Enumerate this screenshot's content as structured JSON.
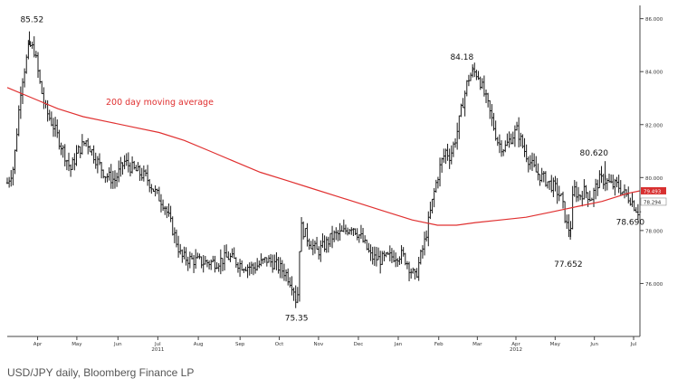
{
  "caption": "USD/JPY daily, Bloomberg Finance LP",
  "chart_data": {
    "type": "line",
    "subtype": "candlestick-daily",
    "y_ticks": [
      {
        "value": 76.0,
        "label": "76.000"
      },
      {
        "value": 78.0,
        "label": "78.000"
      },
      {
        "value": 80.0,
        "label": "80.000"
      },
      {
        "value": 82.0,
        "label": "82.000"
      },
      {
        "value": 84.0,
        "label": "84.000"
      },
      {
        "value": 86.0,
        "label": "86.000"
      }
    ],
    "ylim": [
      74.0,
      86.5
    ],
    "x_ticks": [
      {
        "label": "Apr",
        "year": "",
        "t": 0.048
      },
      {
        "label": "May",
        "year": "",
        "t": 0.11
      },
      {
        "label": "Jun",
        "year": "",
        "t": 0.175
      },
      {
        "label": "Jul",
        "year": "2011",
        "t": 0.238
      },
      {
        "label": "Aug",
        "year": "",
        "t": 0.302
      },
      {
        "label": "Sep",
        "year": "",
        "t": 0.368
      },
      {
        "label": "Oct",
        "year": "",
        "t": 0.43
      },
      {
        "label": "Nov",
        "year": "",
        "t": 0.492
      },
      {
        "label": "Dec",
        "year": "",
        "t": 0.555
      },
      {
        "label": "Jan",
        "year": "",
        "t": 0.618
      },
      {
        "label": "Feb",
        "year": "",
        "t": 0.682
      },
      {
        "label": "Mar",
        "year": "",
        "t": 0.743
      },
      {
        "label": "Apr",
        "year": "2012",
        "t": 0.804
      },
      {
        "label": "May",
        "year": "",
        "t": 0.866
      },
      {
        "label": "Jun",
        "year": "",
        "t": 0.928
      },
      {
        "label": "Jul",
        "year": "",
        "t": 0.99
      }
    ],
    "price_path": [
      [
        0.0,
        79.8
      ],
      [
        0.01,
        80.4
      ],
      [
        0.022,
        83.5
      ],
      [
        0.035,
        85.0
      ],
      [
        0.043,
        84.8
      ],
      [
        0.052,
        83.5
      ],
      [
        0.06,
        82.6
      ],
      [
        0.072,
        82.0
      ],
      [
        0.082,
        81.4
      ],
      [
        0.092,
        80.8
      ],
      [
        0.1,
        80.3
      ],
      [
        0.112,
        81.0
      ],
      [
        0.125,
        81.4
      ],
      [
        0.14,
        80.7
      ],
      [
        0.155,
        80.1
      ],
      [
        0.17,
        79.9
      ],
      [
        0.185,
        80.6
      ],
      [
        0.2,
        80.3
      ],
      [
        0.22,
        80.0
      ],
      [
        0.235,
        79.4
      ],
      [
        0.248,
        79.0
      ],
      [
        0.262,
        78.0
      ],
      [
        0.275,
        77.0
      ],
      [
        0.29,
        76.9
      ],
      [
        0.31,
        76.8
      ],
      [
        0.33,
        76.8
      ],
      [
        0.35,
        77.0
      ],
      [
        0.37,
        76.7
      ],
      [
        0.39,
        76.6
      ],
      [
        0.41,
        76.9
      ],
      [
        0.425,
        76.7
      ],
      [
        0.44,
        76.4
      ],
      [
        0.452,
        75.9
      ],
      [
        0.456,
        75.4
      ],
      [
        0.46,
        75.7
      ],
      [
        0.463,
        78.2
      ],
      [
        0.47,
        77.9
      ],
      [
        0.48,
        77.5
      ],
      [
        0.49,
        77.2
      ],
      [
        0.5,
        77.4
      ],
      [
        0.515,
        77.8
      ],
      [
        0.53,
        77.9
      ],
      [
        0.545,
        78.2
      ],
      [
        0.56,
        77.7
      ],
      [
        0.575,
        77.0
      ],
      [
        0.59,
        76.9
      ],
      [
        0.605,
        77.0
      ],
      [
        0.622,
        77.1
      ],
      [
        0.63,
        76.9
      ],
      [
        0.638,
        76.5
      ],
      [
        0.645,
        76.2
      ],
      [
        0.652,
        76.9
      ],
      [
        0.66,
        77.6
      ],
      [
        0.668,
        78.6
      ],
      [
        0.676,
        79.6
      ],
      [
        0.685,
        80.5
      ],
      [
        0.693,
        81.0
      ],
      [
        0.7,
        80.8
      ],
      [
        0.71,
        81.6
      ],
      [
        0.718,
        82.6
      ],
      [
        0.728,
        83.7
      ],
      [
        0.736,
        84.0
      ],
      [
        0.744,
        83.9
      ],
      [
        0.752,
        83.3
      ],
      [
        0.76,
        82.7
      ],
      [
        0.768,
        82.0
      ],
      [
        0.776,
        81.3
      ],
      [
        0.786,
        81.1
      ],
      [
        0.796,
        81.5
      ],
      [
        0.806,
        81.8
      ],
      [
        0.816,
        81.1
      ],
      [
        0.826,
        80.6
      ],
      [
        0.836,
        80.2
      ],
      [
        0.846,
        80.0
      ],
      [
        0.856,
        79.8
      ],
      [
        0.866,
        79.6
      ],
      [
        0.876,
        79.2
      ],
      [
        0.884,
        78.2
      ],
      [
        0.89,
        78.0
      ],
      [
        0.895,
        79.6
      ],
      [
        0.903,
        79.3
      ],
      [
        0.913,
        79.5
      ],
      [
        0.923,
        79.2
      ],
      [
        0.935,
        79.9
      ],
      [
        0.945,
        79.9
      ],
      [
        0.955,
        79.7
      ],
      [
        0.965,
        79.7
      ],
      [
        0.975,
        79.4
      ],
      [
        0.985,
        79.2
      ],
      [
        0.992,
        78.9
      ],
      [
        0.998,
        78.7
      ]
    ],
    "ma_path": [
      [
        0.0,
        83.4
      ],
      [
        0.04,
        83.0
      ],
      [
        0.08,
        82.6
      ],
      [
        0.12,
        82.3
      ],
      [
        0.16,
        82.1
      ],
      [
        0.2,
        81.9
      ],
      [
        0.24,
        81.7
      ],
      [
        0.28,
        81.4
      ],
      [
        0.32,
        81.0
      ],
      [
        0.36,
        80.6
      ],
      [
        0.4,
        80.2
      ],
      [
        0.44,
        79.9
      ],
      [
        0.48,
        79.6
      ],
      [
        0.52,
        79.3
      ],
      [
        0.56,
        79.0
      ],
      [
        0.6,
        78.7
      ],
      [
        0.64,
        78.4
      ],
      [
        0.68,
        78.2
      ],
      [
        0.71,
        78.2
      ],
      [
        0.74,
        78.3
      ],
      [
        0.78,
        78.4
      ],
      [
        0.82,
        78.5
      ],
      [
        0.86,
        78.7
      ],
      [
        0.9,
        78.9
      ],
      [
        0.94,
        79.1
      ],
      [
        0.98,
        79.4
      ],
      [
        1.0,
        79.5
      ]
    ],
    "ma_label": "200 day moving average",
    "ma_value_label": "79.493",
    "last_value_label": "78.294",
    "annotations": [
      {
        "text": "85.52",
        "t": 0.035,
        "value": 85.52
      },
      {
        "text": "75.35",
        "t": 0.456,
        "value": 75.35
      },
      {
        "text": "84.18",
        "t": 0.736,
        "value": 84.18
      },
      {
        "text": "77.652",
        "t": 0.89,
        "value": 77.652
      },
      {
        "text": "80.620",
        "t": 0.945,
        "value": 80.62
      },
      {
        "text": "78.690",
        "t": 0.998,
        "value": 78.69
      }
    ],
    "colors": {
      "price": "#1a1a1a",
      "ma": "#e03030",
      "axis": "#444444",
      "badge": "#d83030"
    }
  }
}
